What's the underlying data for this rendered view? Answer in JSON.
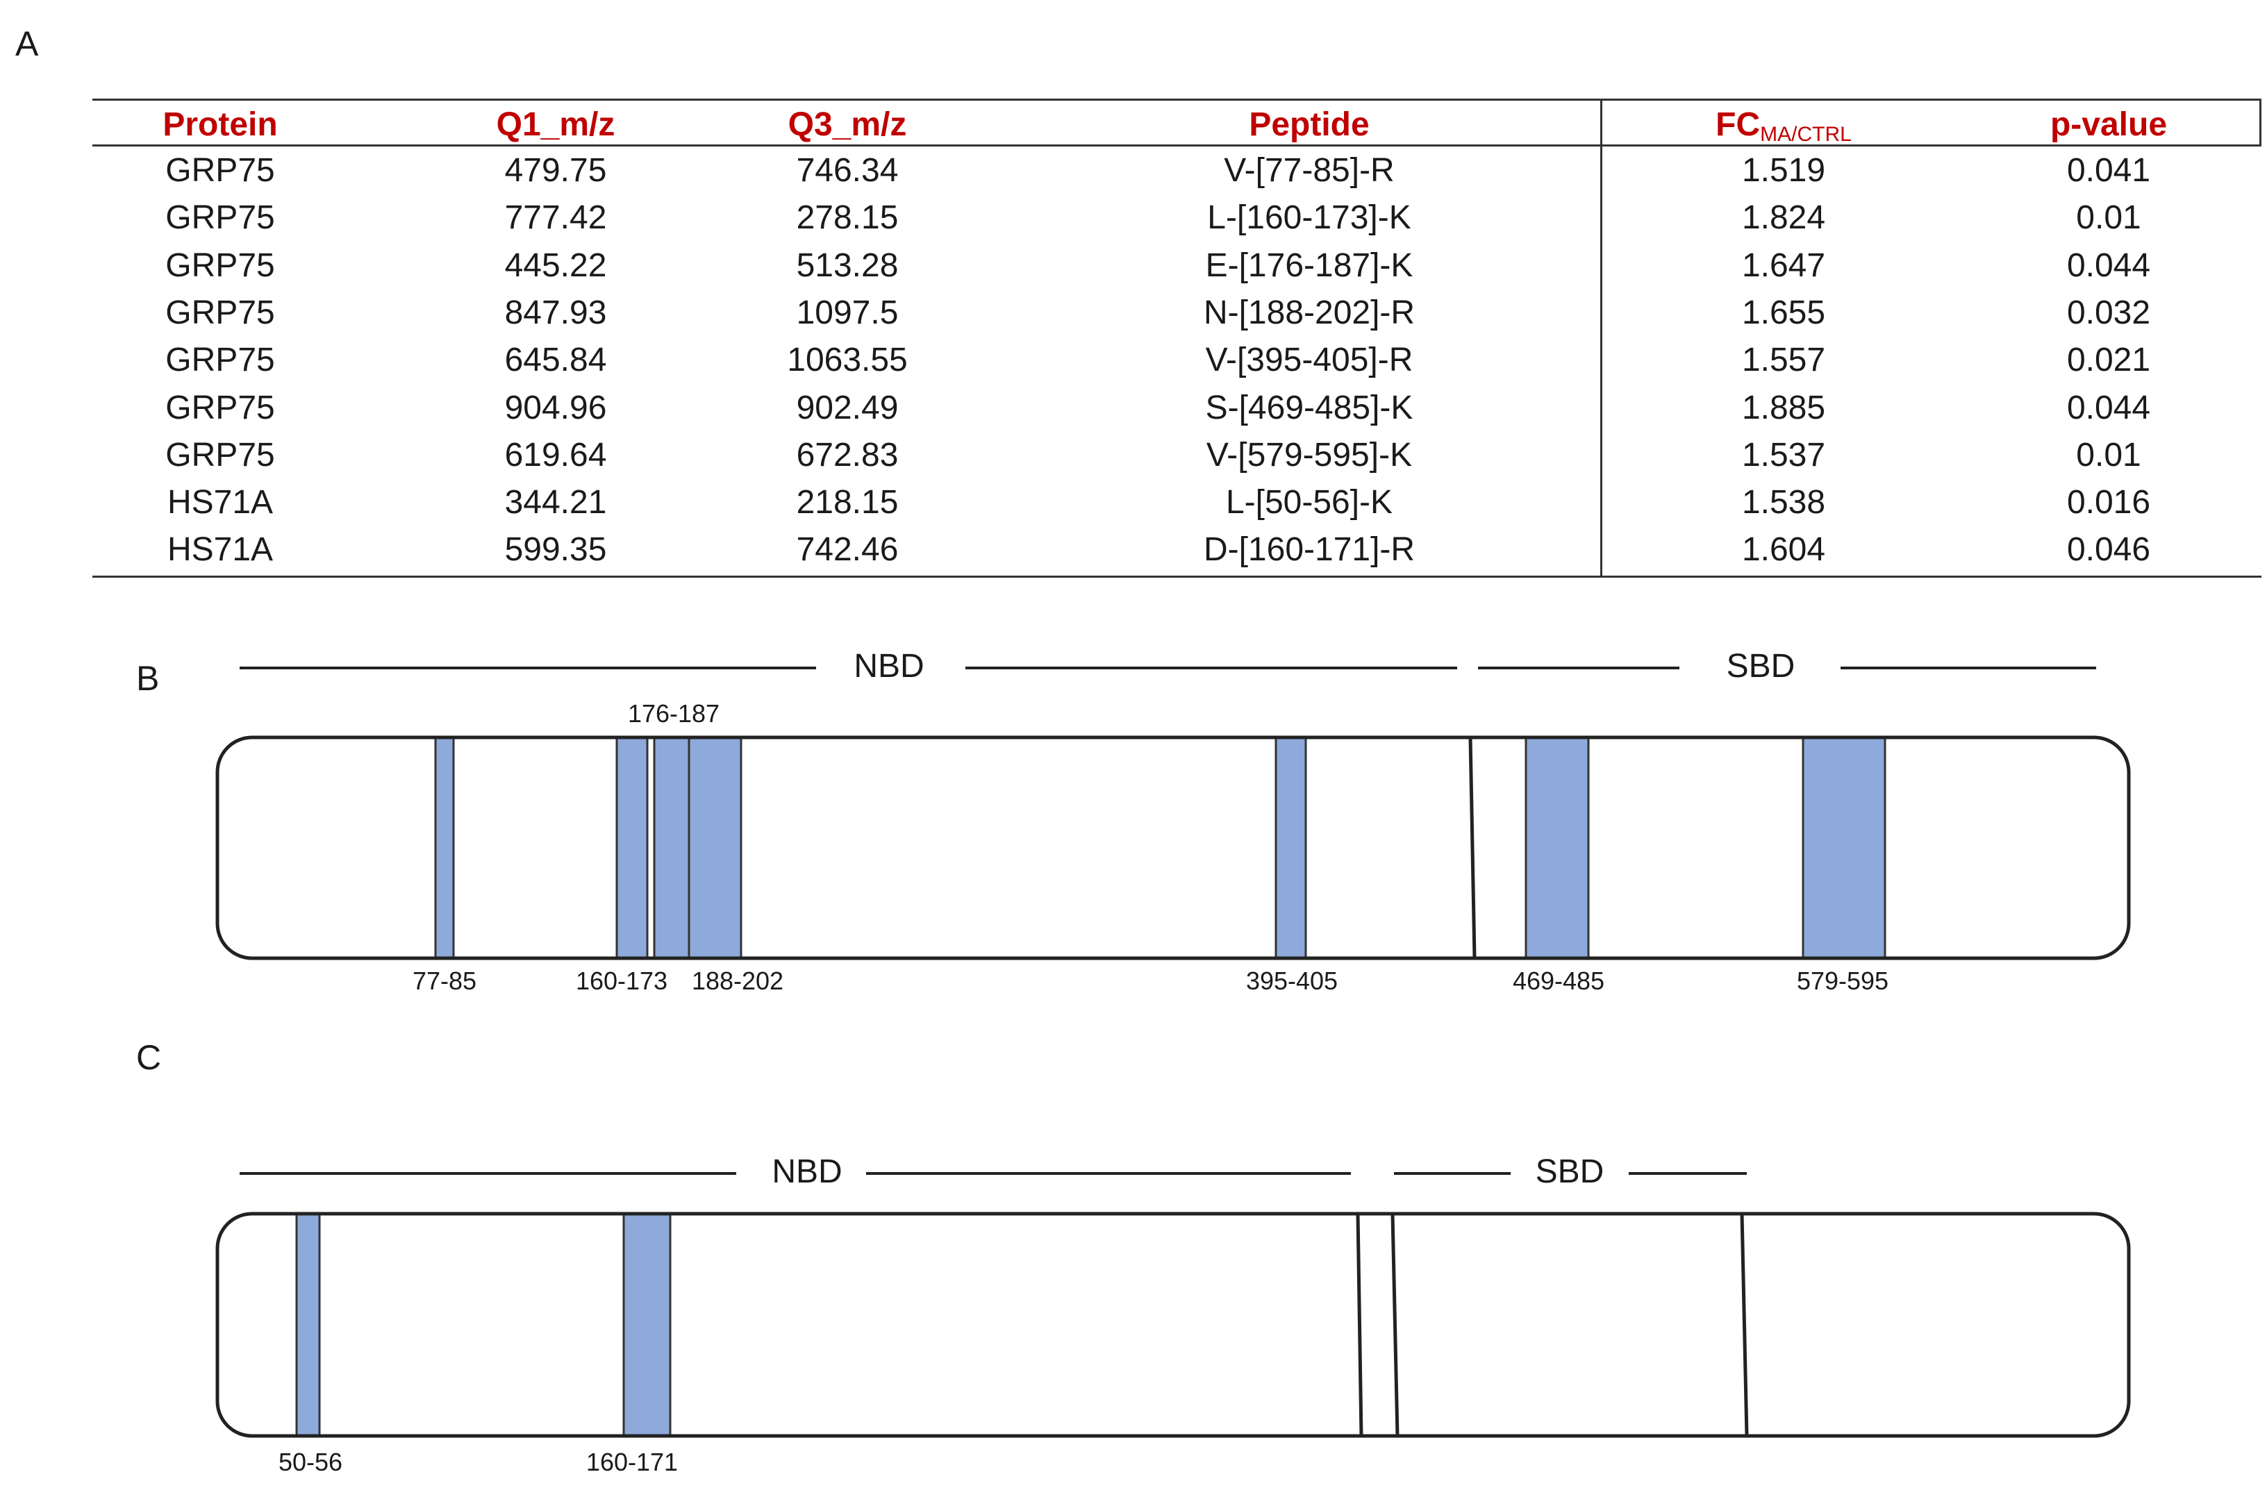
{
  "panels": {
    "a": "A",
    "b": "B",
    "c": "C"
  },
  "table": {
    "headers": {
      "protein": "Protein",
      "q1": "Q1_m/z",
      "q3": "Q3_m/z",
      "peptide": "Peptide",
      "fc": "FC",
      "fc_sub": "MA/CTRL",
      "pvalue": "p-value"
    },
    "rows": [
      [
        "GRP75",
        "479.75",
        "746.34",
        "V-[77-85]-R",
        "1.519",
        "0.041"
      ],
      [
        "GRP75",
        "777.42",
        "278.15",
        "L-[160-173]-K",
        "1.824",
        "0.01"
      ],
      [
        "GRP75",
        "445.22",
        "513.28",
        "E-[176-187]-K",
        "1.647",
        "0.044"
      ],
      [
        "GRP75",
        "847.93",
        "1097.5",
        "N-[188-202]-R",
        "1.655",
        "0.032"
      ],
      [
        "GRP75",
        "645.84",
        "1063.55",
        "V-[395-405]-R",
        "1.557",
        "0.021"
      ],
      [
        "GRP75",
        "904.96",
        "902.49",
        "S-[469-485]-K",
        "1.885",
        "0.044"
      ],
      [
        "GRP75",
        "619.64",
        "672.83",
        "V-[579-595]-K",
        "1.537",
        "0.01"
      ],
      [
        "HS71A",
        "344.21",
        "218.15",
        "L-[50-56]-K",
        "1.538",
        "0.016"
      ],
      [
        "HS71A",
        "599.35",
        "742.46",
        "D-[160-171]-R",
        "1.604",
        "0.046"
      ]
    ]
  },
  "diagram_b": {
    "domains": [
      "NBD",
      "SBD"
    ],
    "peptide_labels": [
      "77-85",
      "176-187",
      "160-173",
      "188-202",
      "395-405",
      "469-485",
      "579-595"
    ]
  },
  "diagram_c": {
    "domains": [
      "NBD",
      "SBD"
    ],
    "peptide_labels": [
      "50-56",
      "160-171"
    ]
  },
  "colors": {
    "header": "#c00000",
    "highlight": "#8eaadb",
    "outline": "#222222"
  }
}
